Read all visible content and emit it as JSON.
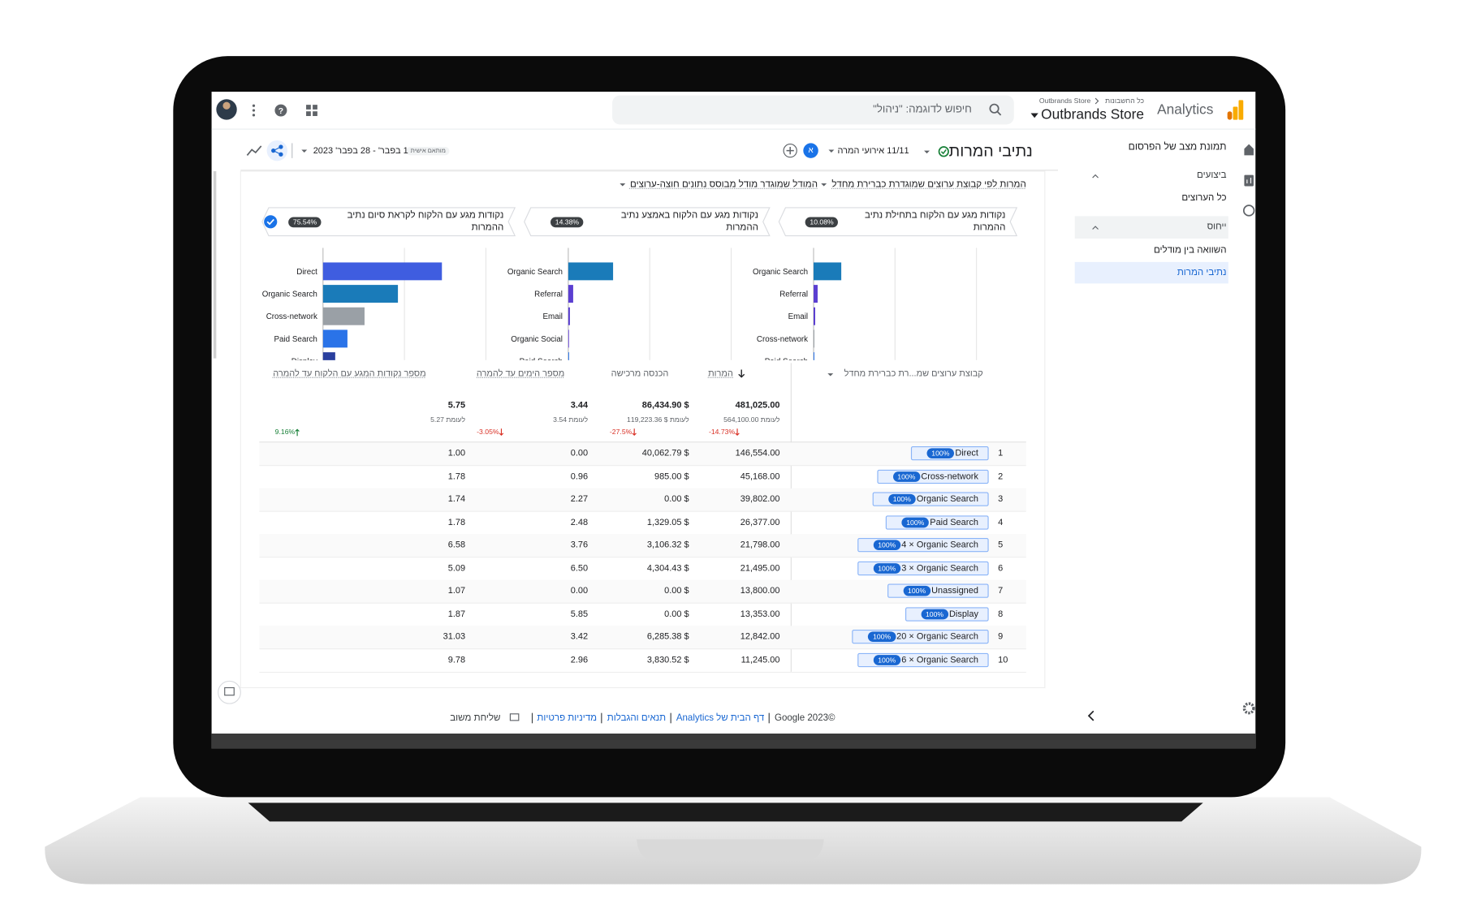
{
  "header": {
    "product": "Analytics",
    "breadcrumb_root": "כל החשבונות",
    "breadcrumb_account": "Outbrands Store",
    "property": "Outbrands Store",
    "search_placeholder": "חיפוש לדוגמה: \"ניהול\""
  },
  "nav": {
    "snapshot": "תמונת מצב של הפרסום",
    "sections": [
      {
        "title": "ביצועים",
        "items": [
          {
            "label": "כל הערוצים",
            "active": false
          }
        ]
      },
      {
        "title": "ייחוס",
        "items": [
          {
            "label": "השוואה בין מודלים",
            "active": false
          },
          {
            "label": "נתיבי המרות",
            "active": true
          }
        ]
      }
    ]
  },
  "toolbar": {
    "title": "נתיבי המרות",
    "conversion_events": "11/11 אירועי המרה",
    "comparison_badge": "א",
    "date_label": "מותאם אישית",
    "date_range": "1 בפבר' - 28 בפבר' 2023"
  },
  "report": {
    "metric_dimension": "המרות לפי קבוצת ערוצים שמוגדרת כברירת מחדל",
    "model": "המודל שמוגדר מודל מבוסס נתונים חוצה-ערוצים"
  },
  "chart_data": [
    {
      "type": "hbar",
      "title": "נקודות מגע עם הלקוח בתחילת נתיב ההמרות",
      "share": "10.08%",
      "selected": false,
      "categories": [
        "Organic Search",
        "Referral",
        "Email",
        "Cross-network",
        "Paid Search"
      ],
      "values": [
        34,
        5,
        2,
        1,
        1
      ],
      "colors": [
        "#1a7bb9",
        "#5b3fd1",
        "#5b3fd1",
        "#9aa0a6",
        "#2a73e8"
      ],
      "xlim": [
        0,
        200
      ]
    },
    {
      "type": "hbar",
      "title": "נקודות מגע עם הלקוח באמצע נתיב ההמרות",
      "share": "14.38%",
      "selected": false,
      "categories": [
        "Organic Search",
        "Referral",
        "Email",
        "Organic Social",
        "Paid Search"
      ],
      "values": [
        55,
        6,
        2,
        1,
        1
      ],
      "colors": [
        "#1a7bb9",
        "#5b3fd1",
        "#5b3fd1",
        "#7a5ce0",
        "#2a73e8"
      ],
      "xlim": [
        0,
        200
      ]
    },
    {
      "type": "hbar",
      "title": "נקודות מגע עם הלקוח לקראת סיום נתיב ההמרות",
      "share": "75.54%",
      "selected": true,
      "categories": [
        "Direct",
        "Organic Search",
        "Cross-network",
        "Paid Search",
        "Display"
      ],
      "values": [
        146,
        92,
        51,
        30,
        15
      ],
      "colors": [
        "#3f5de0",
        "#1a7bb9",
        "#9aa0a6",
        "#2a73e8",
        "#2a3f9e"
      ],
      "xlim": [
        0,
        200
      ]
    }
  ],
  "table": {
    "dimension": "קבוצת ערוצים שמ...רת כברירת מחדל",
    "columns": [
      "המרות",
      "הכנסה מרכישה",
      "מספר הימים עד להמרה",
      "מספר נקודות המגע עם הלקוח עד להמרה"
    ],
    "totals": [
      "481,025.00",
      "$ 86,434.90",
      "3.44",
      "5.75"
    ],
    "compare": [
      "לעומת 564,100.00",
      "לעומת $ 119,223.36",
      "לעומת 3.54",
      "לעומת 5.27"
    ],
    "changes": [
      "-14.73%",
      "-27.5%",
      "-3.05%",
      "9.16%"
    ],
    "rows": [
      {
        "rank": "1",
        "share": "100%",
        "channel": "Direct",
        "cells": [
          "146,554.00",
          "$ 40,062.79",
          "0.00",
          "1.00"
        ]
      },
      {
        "rank": "2",
        "share": "100%",
        "channel": "Cross-network",
        "cells": [
          "45,168.00",
          "$ 985.00",
          "0.96",
          "1.78"
        ]
      },
      {
        "rank": "3",
        "share": "100%",
        "channel": "Organic Search",
        "cells": [
          "39,802.00",
          "$ 0.00",
          "2.27",
          "1.74"
        ]
      },
      {
        "rank": "4",
        "share": "100%",
        "channel": "Paid Search",
        "cells": [
          "26,377.00",
          "$ 1,329.05",
          "2.48",
          "1.78"
        ]
      },
      {
        "rank": "5",
        "share": "100%",
        "channel": "4 × Organic Search",
        "cells": [
          "21,798.00",
          "$ 3,106.32",
          "3.76",
          "6.58"
        ]
      },
      {
        "rank": "6",
        "share": "100%",
        "channel": "3 × Organic Search",
        "cells": [
          "21,495.00",
          "$ 4,304.43",
          "6.50",
          "5.09"
        ]
      },
      {
        "rank": "7",
        "share": "100%",
        "channel": "Unassigned",
        "cells": [
          "13,800.00",
          "$ 0.00",
          "0.00",
          "1.07"
        ]
      },
      {
        "rank": "8",
        "share": "100%",
        "channel": "Display",
        "cells": [
          "13,353.00",
          "$ 0.00",
          "5.85",
          "1.87"
        ]
      },
      {
        "rank": "9",
        "share": "100%",
        "channel": "20 × Organic Search",
        "cells": [
          "12,842.00",
          "$ 6,285.38",
          "3.42",
          "31.03"
        ]
      },
      {
        "rank": "10",
        "share": "100%",
        "channel": "6 × Organic Search",
        "cells": [
          "11,245.00",
          "$ 3,830.52",
          "2.96",
          "9.78"
        ]
      }
    ]
  },
  "footer": {
    "copyright": "©Google 2023",
    "links": [
      "דף הבית של Analytics",
      "תנאים והגבלות",
      "מדיניות פרטיות"
    ],
    "feedback": "שליחת משוב"
  }
}
